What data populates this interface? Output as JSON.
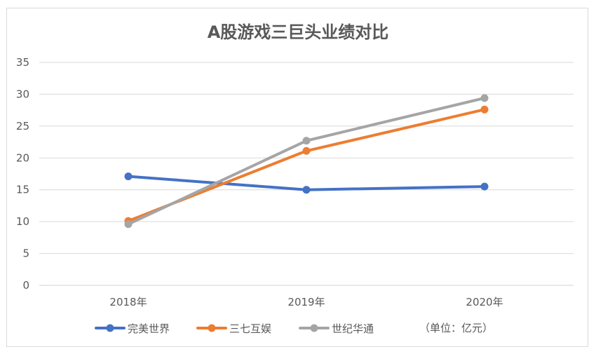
{
  "chart_data": {
    "type": "line",
    "title": "A股游戏三巨头业绩对比",
    "categories": [
      "2018年",
      "2019年",
      "2020年"
    ],
    "ylim": [
      0,
      35
    ],
    "yticks": [
      0,
      5,
      10,
      15,
      20,
      25,
      30,
      35
    ],
    "grid": true,
    "legend_position": "bottom",
    "unit_note": "（单位：亿元）",
    "series": [
      {
        "name": "完美世界",
        "color": "#4472c4",
        "values": [
          17.1,
          15.0,
          15.5
        ]
      },
      {
        "name": "三七互娱",
        "color": "#ed7d31",
        "values": [
          10.1,
          21.1,
          27.6
        ]
      },
      {
        "name": "世纪华通",
        "color": "#a5a5a5",
        "values": [
          9.6,
          22.7,
          29.4
        ]
      }
    ]
  }
}
